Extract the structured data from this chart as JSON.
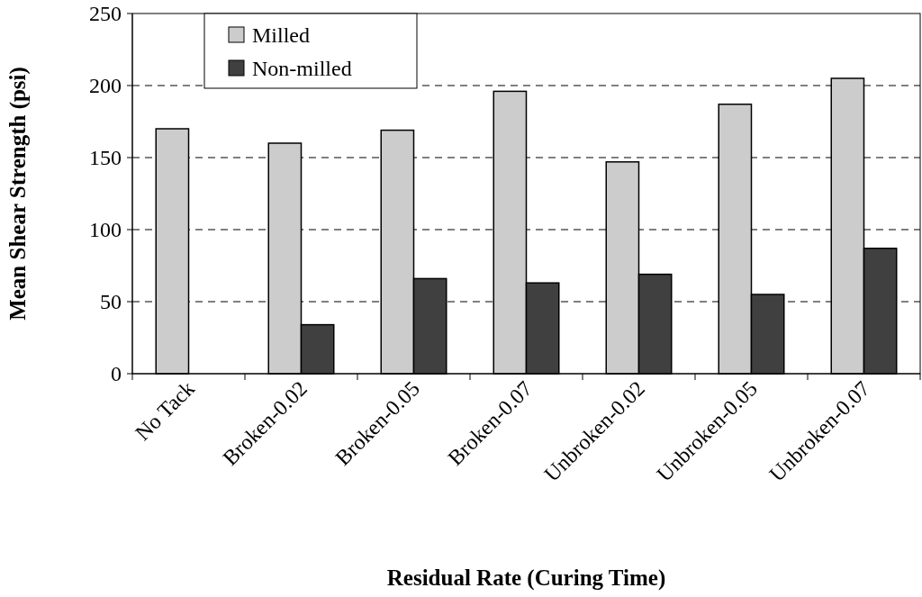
{
  "chart_data": {
    "type": "bar",
    "xlabel": "Residual Rate (Curing Time)",
    "ylabel": "Mean Shear Strength (psi)",
    "categories": [
      "No Tack",
      "Broken-0.02",
      "Broken-0.05",
      "Broken-0.07",
      "Unbroken-0.02",
      "Unbroken-0.05",
      "Unbroken-0.07"
    ],
    "series": [
      {
        "name": "Milled",
        "color": "#cccccc",
        "values": [
          170,
          160,
          169,
          196,
          147,
          187,
          205
        ]
      },
      {
        "name": "Non-milled",
        "color": "#404040",
        "values": [
          null,
          34,
          66,
          63,
          69,
          55,
          87
        ]
      }
    ],
    "ylim": [
      0,
      250
    ],
    "yticks": [
      0,
      50,
      100,
      150,
      200,
      250
    ],
    "grid": "y",
    "legend": "top left"
  }
}
